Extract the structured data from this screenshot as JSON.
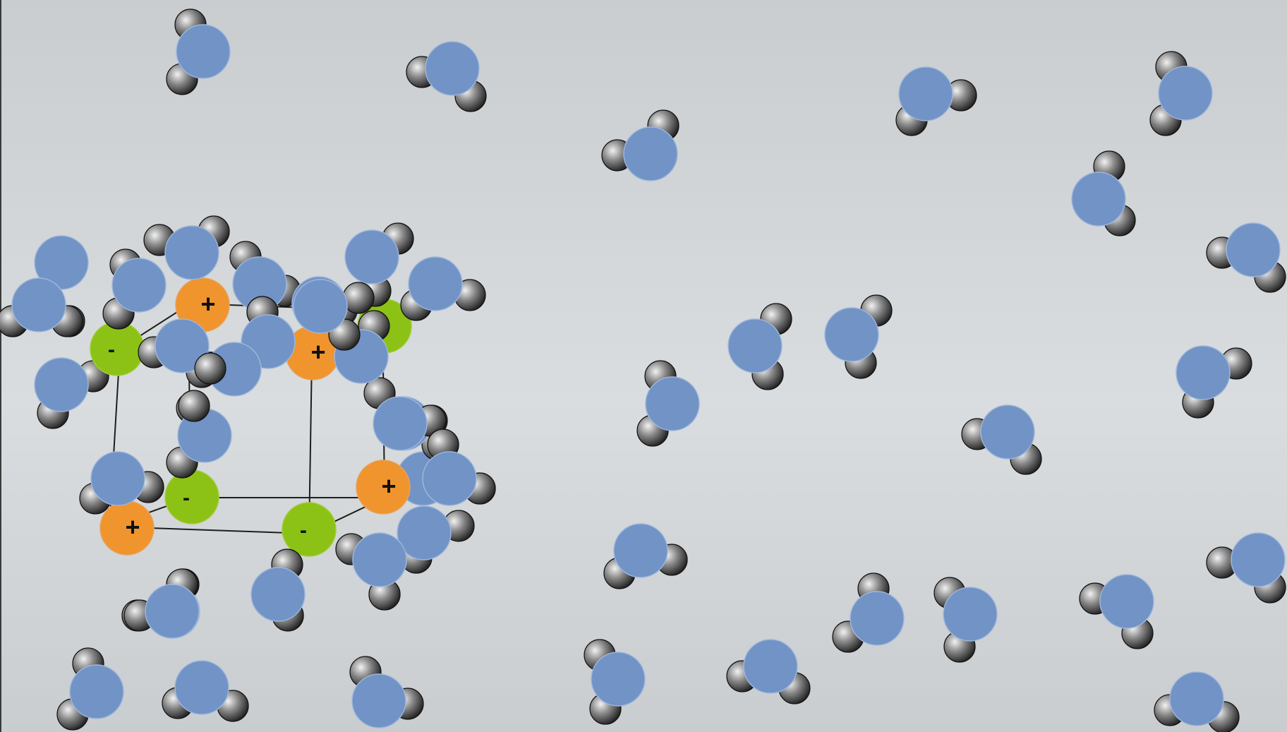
{
  "palette": {
    "oxygen": "#7293c6",
    "oxygen_edge": "#9fb7dc",
    "hydrogen_light": "#efefef",
    "hydrogen_dark": "#2b2b2b",
    "cation": "#f0942e",
    "anion": "#8cc215",
    "lattice_line": "#1e1e1e"
  },
  "ion_labels": {
    "cation": "+",
    "anion": "-"
  },
  "ions": [
    {
      "kind": "cation",
      "label": "+"
    },
    {
      "kind": "anion",
      "label": "-"
    },
    {
      "kind": "cation",
      "label": "+"
    },
    {
      "kind": "anion",
      "label": "-"
    },
    {
      "kind": "anion",
      "label": "-"
    },
    {
      "kind": "cation",
      "label": "+"
    },
    {
      "kind": "cation",
      "label": "+"
    },
    {
      "kind": "anion",
      "label": "-"
    }
  ],
  "water_molecule_count": 46
}
